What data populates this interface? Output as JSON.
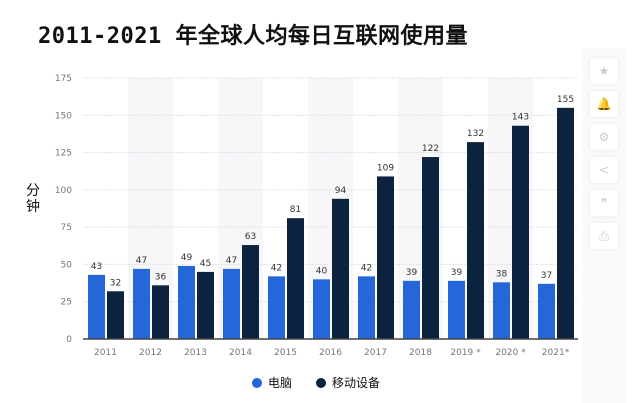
{
  "title": "2011-2021 年全球人均每日互联网使用量",
  "chart_data": {
    "type": "bar",
    "title": "2011-2021 年全球人均每日互联网使用量",
    "xlabel": "",
    "ylabel": "分钟",
    "ylim": [
      0,
      175
    ],
    "yticks": [
      0,
      25,
      50,
      75,
      100,
      125,
      150,
      175
    ],
    "grid": true,
    "legend_position": "bottom",
    "categories": [
      "2011",
      "2012",
      "2013",
      "2014",
      "2015",
      "2016",
      "2017",
      "2018",
      "2019 *",
      "2020 *",
      "2021*"
    ],
    "series": [
      {
        "name": "电脑",
        "color": "#2566d8",
        "values": [
          43,
          47,
          49,
          47,
          42,
          40,
          42,
          39,
          39,
          38,
          37
        ]
      },
      {
        "name": "移动设备",
        "color": "#0c2340",
        "values": [
          32,
          36,
          45,
          63,
          81,
          94,
          109,
          122,
          132,
          143,
          155
        ]
      }
    ]
  },
  "sidebar": {
    "icons": [
      "star-icon",
      "bell-icon",
      "gear-icon",
      "share-icon",
      "quote-icon",
      "print-icon"
    ],
    "glyphs": [
      "★",
      "🔔",
      "⚙",
      "<",
      "❞",
      "⎙"
    ]
  }
}
